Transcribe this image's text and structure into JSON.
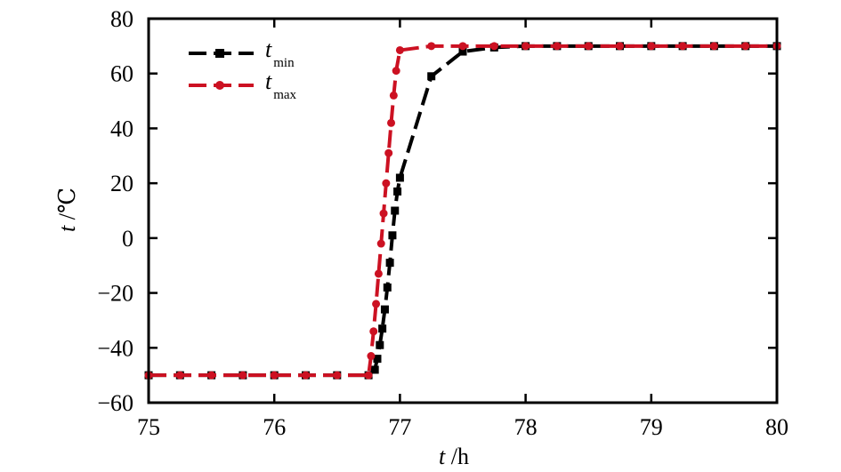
{
  "chart_data": {
    "type": "line",
    "xlabel": {
      "var": "t",
      "unit": " /h"
    },
    "ylabel": {
      "var": "t",
      "unit": " /℃"
    },
    "xlim": [
      75,
      80
    ],
    "ylim": [
      -60,
      80
    ],
    "xticks": [
      75,
      76,
      77,
      78,
      79,
      80
    ],
    "yticks": [
      -60,
      -40,
      -20,
      0,
      20,
      40,
      60,
      80
    ],
    "xtick_labels": [
      "75",
      "76",
      "77",
      "78",
      "79",
      "80"
    ],
    "ytick_labels": [
      "−60",
      "−40",
      "−20",
      "0",
      "20",
      "40",
      "60",
      "80"
    ],
    "grid": false,
    "legend": {
      "position": "top-left"
    },
    "series": [
      {
        "label": "t",
        "label_sub": "min",
        "color": "#000000",
        "marker": "square",
        "x": [
          75.0,
          75.25,
          75.5,
          75.75,
          76.0,
          76.25,
          76.5,
          76.75,
          76.8,
          76.82,
          76.84,
          76.86,
          76.88,
          76.9,
          76.92,
          76.94,
          76.96,
          76.98,
          77.0,
          77.25,
          77.5,
          77.75,
          78.0,
          78.25,
          78.5,
          78.75,
          79.0,
          79.25,
          79.5,
          79.75,
          80.0
        ],
        "y": [
          -50,
          -50,
          -50,
          -50,
          -50,
          -50,
          -50,
          -50,
          -48,
          -44,
          -39,
          -33,
          -26,
          -18,
          -9,
          1,
          10,
          17,
          22,
          59,
          68,
          69.5,
          70,
          70,
          70,
          70,
          70,
          70,
          70,
          70,
          70
        ]
      },
      {
        "label": "t",
        "label_sub": "max",
        "color": "#cc1122",
        "marker": "circle",
        "x": [
          75.0,
          75.25,
          75.5,
          75.75,
          76.0,
          76.25,
          76.5,
          76.75,
          76.77,
          76.79,
          76.81,
          76.83,
          76.85,
          76.87,
          76.89,
          76.91,
          76.93,
          76.95,
          76.97,
          77.0,
          77.25,
          77.5,
          77.75,
          78.0,
          78.25,
          78.5,
          78.75,
          79.0,
          79.25,
          79.5,
          79.75,
          80.0
        ],
        "y": [
          -50,
          -50,
          -50,
          -50,
          -50,
          -50,
          -50,
          -50,
          -43,
          -34,
          -24,
          -13,
          -2,
          9,
          20,
          31,
          42,
          52,
          61,
          68.5,
          70,
          70,
          70,
          70,
          70,
          70,
          70,
          70,
          70,
          70,
          70,
          70
        ]
      }
    ]
  }
}
